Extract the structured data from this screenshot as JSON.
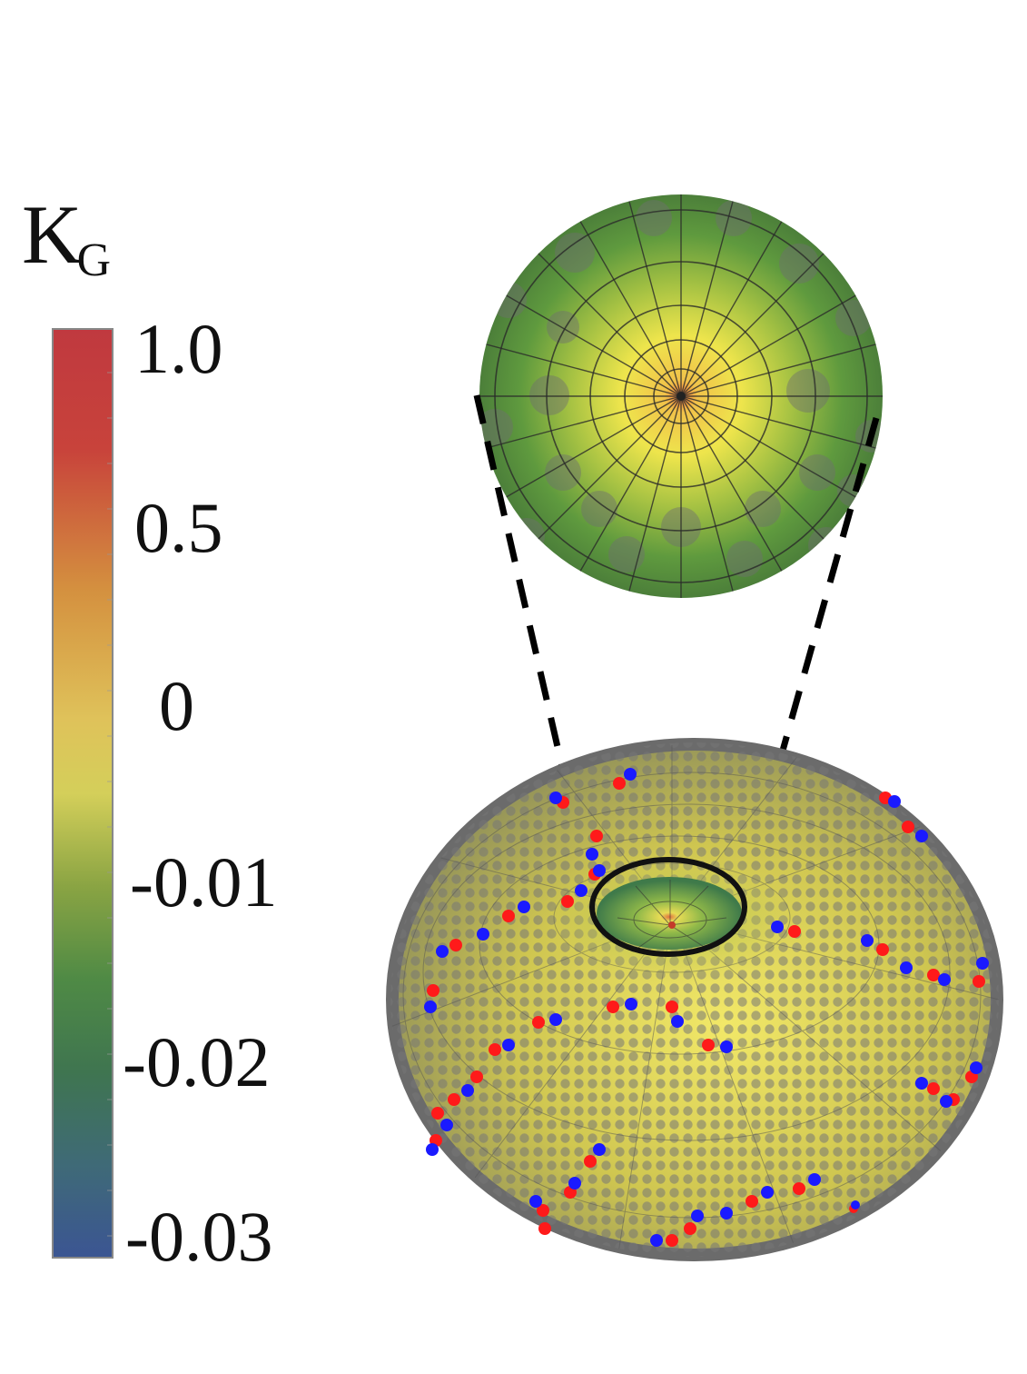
{
  "colorbar": {
    "title_main": "K",
    "title_sub": "G",
    "ticks": [
      "1.0",
      "0.5",
      "0",
      "-0.01",
      "-0.02",
      "-0.03"
    ],
    "gradient_stops": [
      "#c0393f",
      "#d4903f",
      "#d9c95c",
      "#7a9a3f",
      "#3f7550",
      "#3b5a95"
    ]
  },
  "surface": {
    "base_color": "#d4c24a",
    "bead_color": "#6e6e6e",
    "defect_colors": {
      "positive": "#ff1a1a",
      "negative": "#1a1aff"
    }
  },
  "zoom": {
    "inner_color": "#e8e24a",
    "outer_color": "#4f8a3c"
  }
}
